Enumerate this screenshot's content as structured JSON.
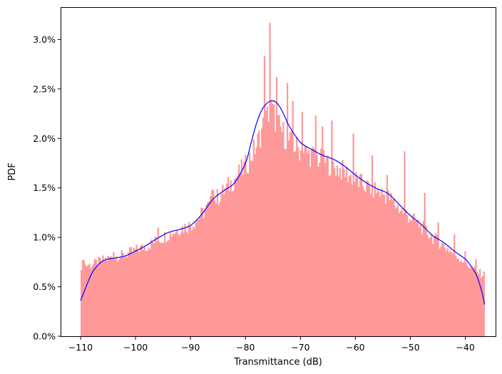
{
  "chart_data": {
    "type": "histogram",
    "title": "",
    "xlabel": "Transmittance (dB)",
    "ylabel": "PDF",
    "xlim": [
      -113.5,
      -34.5
    ],
    "ylim": [
      0,
      0.0332
    ],
    "x_ticks": [
      -110,
      -100,
      -90,
      -80,
      -70,
      -60,
      -50,
      -40
    ],
    "y_ticks": [
      0.0,
      0.005,
      0.01,
      0.015,
      0.02,
      0.025,
      0.03
    ],
    "y_tick_labels": [
      "0.0%",
      "0.5%",
      "1.0%",
      "1.5%",
      "2.0%",
      "2.5%",
      "3.0%"
    ],
    "grid": false,
    "bar_color": "#ff9999",
    "line_color": "#0000ff",
    "bins": {
      "start": -110,
      "end": -36.5,
      "count": 300
    },
    "histogram_profile": {
      "x": [
        -110,
        -108,
        -106,
        -104,
        -102,
        -100,
        -98,
        -96,
        -94,
        -92,
        -90,
        -88,
        -86,
        -84,
        -82,
        -80,
        -78,
        -77,
        -76,
        -75.5,
        -75,
        -74,
        -73,
        -72,
        -70,
        -68,
        -66,
        -64,
        -62,
        -60,
        -58,
        -56,
        -54,
        -52,
        -50,
        -48,
        -46,
        -44,
        -42,
        -40,
        -38,
        -36.5
      ],
      "y": [
        0.0072,
        0.0072,
        0.0077,
        0.008,
        0.0082,
        0.0087,
        0.0091,
        0.0097,
        0.0103,
        0.0109,
        0.0112,
        0.0123,
        0.0136,
        0.0146,
        0.0159,
        0.0172,
        0.0193,
        0.0209,
        0.0223,
        0.0233,
        0.0225,
        0.0212,
        0.0204,
        0.0196,
        0.0188,
        0.0183,
        0.0177,
        0.0172,
        0.0166,
        0.0158,
        0.0151,
        0.0147,
        0.0141,
        0.0129,
        0.012,
        0.0111,
        0.01,
        0.0092,
        0.0083,
        0.0075,
        0.0065,
        0.0062
      ]
    },
    "histogram_spikes": [
      {
        "x": -75.5,
        "y": 0.0317
      },
      {
        "x": -76.5,
        "y": 0.0283
      },
      {
        "x": -74.3,
        "y": 0.0262
      },
      {
        "x": -72.5,
        "y": 0.0256
      },
      {
        "x": -71.5,
        "y": 0.0238
      },
      {
        "x": -69.8,
        "y": 0.0227
      },
      {
        "x": -67.2,
        "y": 0.0223
      },
      {
        "x": -66.0,
        "y": 0.0212
      },
      {
        "x": -64.3,
        "y": 0.0218
      },
      {
        "x": -60.3,
        "y": 0.0205
      },
      {
        "x": -57.0,
        "y": 0.0183
      },
      {
        "x": -54.3,
        "y": 0.0163
      },
      {
        "x": -51.0,
        "y": 0.0187
      },
      {
        "x": -47.5,
        "y": 0.0145
      },
      {
        "x": -45.0,
        "y": 0.0115
      },
      {
        "x": -42.0,
        "y": 0.0103
      },
      {
        "x": -40.0,
        "y": 0.0086
      },
      {
        "x": -38.0,
        "y": 0.0078
      },
      {
        "x": -109.5,
        "y": 0.0077
      },
      {
        "x": -104.0,
        "y": 0.0085
      },
      {
        "x": -96.0,
        "y": 0.011
      },
      {
        "x": -86.0,
        "y": 0.0148
      }
    ],
    "kde_curve": {
      "x": [
        -110,
        -109,
        -108,
        -107,
        -106,
        -105,
        -104,
        -102,
        -100,
        -98,
        -96,
        -94,
        -92,
        -90,
        -88,
        -86,
        -84,
        -82,
        -80,
        -79,
        -78,
        -77,
        -76,
        -75,
        -74,
        -73,
        -72,
        -70,
        -68,
        -66,
        -64,
        -62,
        -60,
        -58,
        -56,
        -54,
        -52,
        -50,
        -48,
        -46,
        -44,
        -42,
        -40,
        -39,
        -38,
        -37,
        -36.5
      ],
      "y": [
        0.0036,
        0.005,
        0.0063,
        0.0071,
        0.0076,
        0.0078,
        0.0079,
        0.0081,
        0.0086,
        0.0092,
        0.0099,
        0.0105,
        0.0108,
        0.0112,
        0.0123,
        0.0138,
        0.0147,
        0.0155,
        0.0175,
        0.0195,
        0.0215,
        0.0229,
        0.0236,
        0.0238,
        0.0234,
        0.0224,
        0.0212,
        0.0196,
        0.0189,
        0.0183,
        0.0179,
        0.0172,
        0.0163,
        0.0155,
        0.0149,
        0.0144,
        0.0133,
        0.0122,
        0.0113,
        0.0102,
        0.0095,
        0.0086,
        0.0078,
        0.0071,
        0.0062,
        0.0045,
        0.0032
      ]
    }
  }
}
